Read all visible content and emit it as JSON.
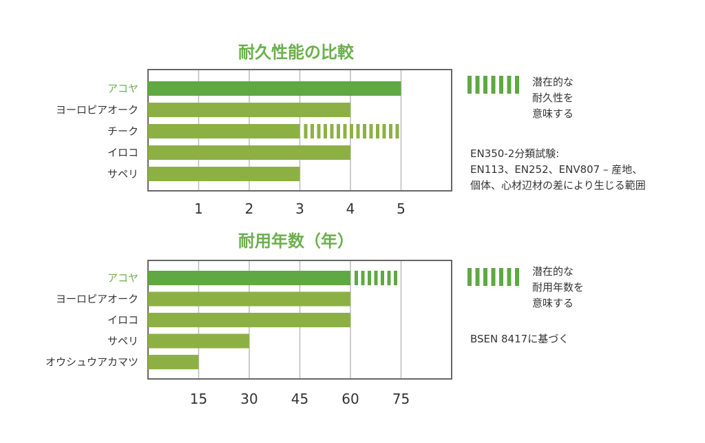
{
  "colors": {
    "accent": "#6ab04c",
    "highlight_bar": "#5fa843",
    "bar": "#8db045",
    "frame": "#666666",
    "grid": "#bbbbbb",
    "text": "#333333"
  },
  "chart_data": [
    {
      "type": "bar",
      "orientation": "horizontal",
      "title": "耐久性能の比較",
      "categories": [
        "アコヤ",
        "ヨーロピアオーク",
        "チーク",
        "イロコ",
        "サペリ"
      ],
      "highlight_category": "アコヤ",
      "series": [
        {
          "values": [
            5,
            4,
            3,
            4,
            3
          ]
        }
      ],
      "potential_values": [
        null,
        null,
        5,
        null,
        null
      ],
      "ticks": [
        "1",
        "2",
        "3",
        "4",
        "5"
      ],
      "tick_values": [
        1,
        2,
        3,
        4,
        5
      ],
      "xlim": [
        0,
        6
      ],
      "grid": true,
      "legend": {
        "label": "潜在的な\n耐久性を\n意味する",
        "position": "right"
      },
      "note": "EN350-2分類試験:\nEN113、EN252、ENV807 – 産地、\n個体、心材辺材の差により生じる範囲"
    },
    {
      "type": "bar",
      "orientation": "horizontal",
      "title": "耐用年数（年）",
      "categories": [
        "アコヤ",
        "ヨーロピアオーク",
        "イロコ",
        "サペリ",
        "オウシュウアカマツ"
      ],
      "highlight_category": "アコヤ",
      "series": [
        {
          "values": [
            60,
            60,
            60,
            30,
            15
          ]
        }
      ],
      "potential_values": [
        75,
        null,
        null,
        null,
        null
      ],
      "ticks": [
        "15",
        "30",
        "45",
        "60",
        "75"
      ],
      "tick_values": [
        15,
        30,
        45,
        60,
        75
      ],
      "xlim": [
        0,
        90
      ],
      "grid": true,
      "legend": {
        "label": "潜在的な\n耐用年数を\n意味する",
        "position": "right"
      },
      "note": "BSEN 8417に基づく"
    }
  ]
}
